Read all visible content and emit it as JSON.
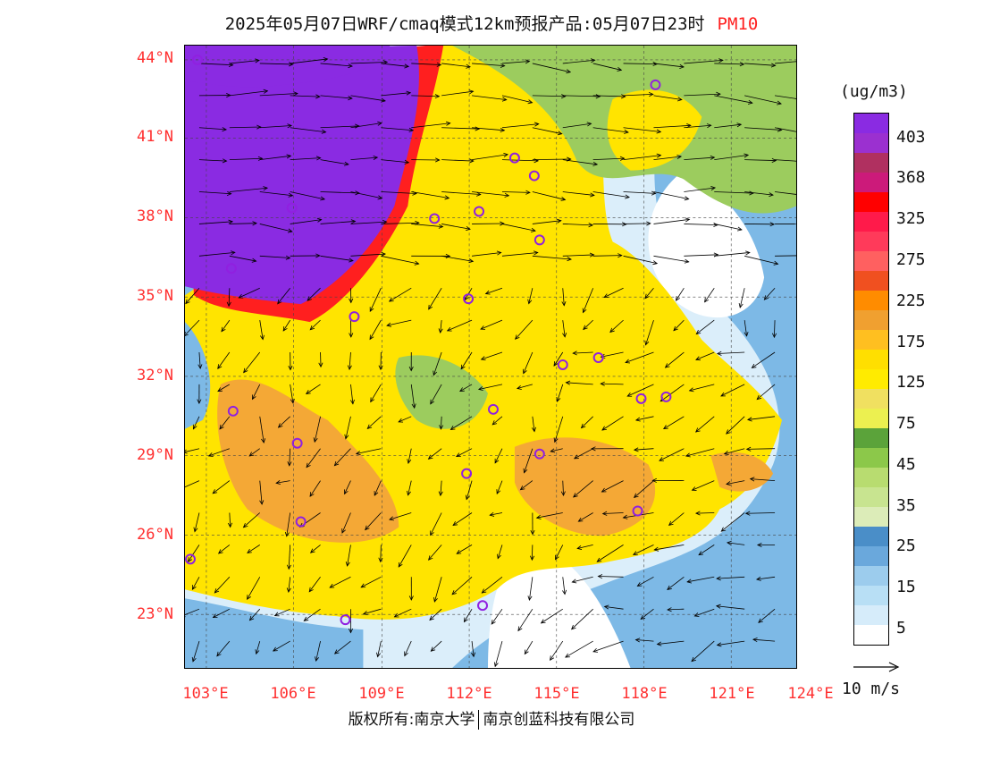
{
  "title": {
    "text": "2025年05月07日WRF/cmaq模式12km预报产品:05月07日23时",
    "pollutant": "PM10"
  },
  "map": {
    "lat_labels": [
      "44°N",
      "41°N",
      "38°N",
      "35°N",
      "32°N",
      "29°N",
      "26°N",
      "23°N"
    ],
    "lon_labels": [
      "103°E",
      "106°E",
      "109°E",
      "112°E",
      "115°E",
      "118°E",
      "121°E",
      "124°E"
    ],
    "colors": {
      "sea": "#dbeefa",
      "ocean_deep": "#4a90c8",
      "low": "#7db9e6",
      "green": "#9ccc5e",
      "yellow": "#ffe400",
      "orange": "#f4a836",
      "purple": "#8a2be2",
      "red": "#ff1f1f"
    },
    "city_marker_color": "#9020e0",
    "wind_vector_color": "#000000"
  },
  "colorbar": {
    "unit": "(ug/m3)",
    "colors": [
      "#8a2be2",
      "#9b30d0",
      "#b03060",
      "#cc1a7a",
      "#ff0000",
      "#ff1a4a",
      "#ff3a5a",
      "#ff6060",
      "#f05020",
      "#ff8c00",
      "#f0a030",
      "#ffbf20",
      "#ffdf00",
      "#ffeb00",
      "#f0e060",
      "#ecf050",
      "#5ba33a",
      "#8cc84a",
      "#b8dc70",
      "#c8e490",
      "#dcecb8",
      "#4a8ec8",
      "#6aa8dc",
      "#9ccced",
      "#b8dff5",
      "#d6ecfa"
    ],
    "labels": [
      "403",
      "368",
      "325",
      "275",
      "225",
      "175",
      "125",
      "75",
      "45",
      "35",
      "25",
      "15",
      "5"
    ],
    "colors_low_end": "#ffffff"
  },
  "wind_legend": {
    "label": "10 m/s"
  },
  "copyright": {
    "left": "版权所有:南京大学",
    "right": "南京创蓝科技有限公司"
  }
}
